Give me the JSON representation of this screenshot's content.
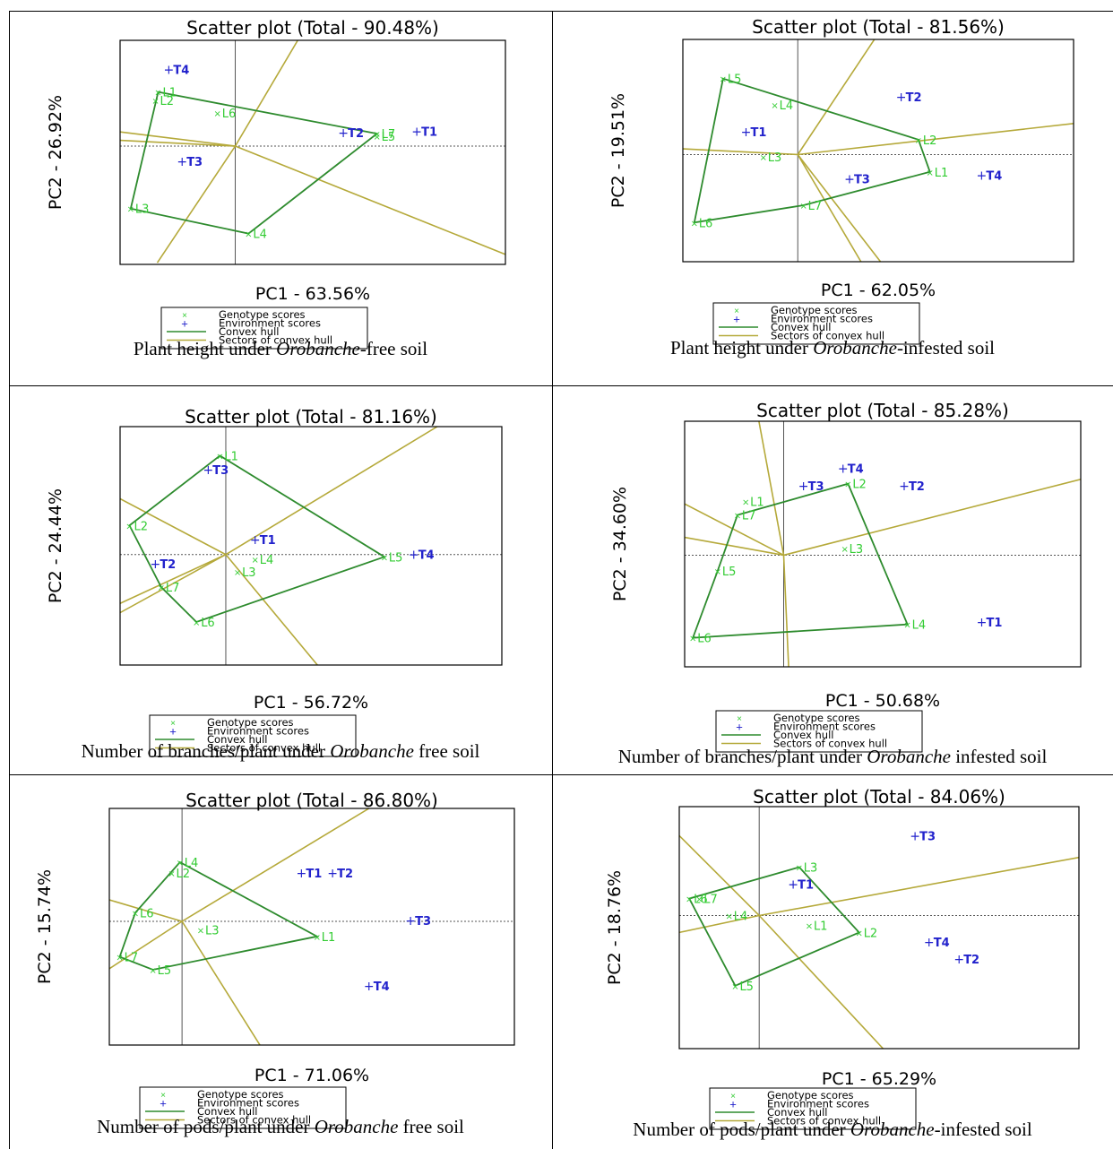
{
  "colors": {
    "genotype": "#33cc33",
    "environment": "#2222cc",
    "hull": "#2e8b2e",
    "sector": "#b5a93a",
    "frame": "#000000",
    "origin_lines": "#555555"
  },
  "legend": {
    "items": [
      "Genotype scores",
      "Environment scores",
      "Convex hull",
      "Sectors of convex hull"
    ]
  },
  "chart_data": [
    {
      "type": "scatter",
      "title": "Scatter plot (Total - 90.48%)",
      "xlabel": "PC1 - 63.56%",
      "ylabel": "PC2 - 26.92%",
      "caption": {
        "pre": "Plant height under ",
        "italic": "Orobanche",
        "post": "-free soil"
      },
      "xlim": [
        -1.3,
        3.05
      ],
      "ylim": [
        -1.42,
        1.27
      ],
      "genotypes": [
        {
          "name": "L1",
          "x": -0.87,
          "y": 0.65
        },
        {
          "name": "L2",
          "x": -0.9,
          "y": 0.55
        },
        {
          "name": "L3",
          "x": -1.18,
          "y": -0.75
        },
        {
          "name": "L4",
          "x": 0.15,
          "y": -1.05
        },
        {
          "name": "L5",
          "x": 1.6,
          "y": 0.12
        },
        {
          "name": "L6",
          "x": -0.2,
          "y": 0.4
        },
        {
          "name": "L7",
          "x": 1.6,
          "y": 0.15
        }
      ],
      "environments": [
        {
          "name": "T1",
          "x": 2.05,
          "y": 0.18
        },
        {
          "name": "T2",
          "x": 1.22,
          "y": 0.16
        },
        {
          "name": "T3",
          "x": -0.6,
          "y": -0.18
        },
        {
          "name": "T4",
          "x": -0.75,
          "y": 0.92
        }
      ],
      "hull": [
        "L1",
        "L7",
        "L4",
        "L3"
      ],
      "sectors": [
        [
          -1.3,
          0.17
        ],
        [
          -1.3,
          0.07
        ],
        [
          0.75,
          1.35
        ],
        [
          -0.88,
          -1.4
        ],
        [
          3.05,
          -1.3
        ]
      ]
    },
    {
      "type": "scatter",
      "title": "Scatter plot (Total - 81.56%)",
      "xlabel": "PC1 - 62.05%",
      "ylabel": "PC2 - 19.51%",
      "caption": {
        "pre": "Plant height under ",
        "italic": "Orobanche",
        "post": "-infested soil"
      },
      "xlim": [
        -1.0,
        2.4
      ],
      "ylim": [
        -0.93,
        1.0
      ],
      "genotypes": [
        {
          "name": "L1",
          "x": 1.15,
          "y": -0.15
        },
        {
          "name": "L2",
          "x": 1.05,
          "y": 0.13
        },
        {
          "name": "L3",
          "x": -0.3,
          "y": -0.02
        },
        {
          "name": "L4",
          "x": -0.2,
          "y": 0.43
        },
        {
          "name": "L5",
          "x": -0.65,
          "y": 0.66
        },
        {
          "name": "L6",
          "x": -0.9,
          "y": -0.59
        },
        {
          "name": "L7",
          "x": 0.05,
          "y": -0.44
        }
      ],
      "environments": [
        {
          "name": "T1",
          "x": -0.45,
          "y": 0.2
        },
        {
          "name": "T2",
          "x": 0.9,
          "y": 0.5
        },
        {
          "name": "T3",
          "x": 0.45,
          "y": -0.21
        },
        {
          "name": "T4",
          "x": 1.6,
          "y": -0.18
        }
      ],
      "hull": [
        "L5",
        "L2",
        "L1",
        "L7",
        "L6"
      ],
      "sectors": [
        [
          0.7,
          1.05
        ],
        [
          2.4,
          0.27
        ],
        [
          -1.0,
          0.05
        ],
        [
          0.55,
          -0.93
        ],
        [
          0.72,
          -0.93
        ]
      ]
    },
    {
      "type": "scatter",
      "title": "Scatter plot (Total - 81.16%)",
      "xlabel": "PC1 - 56.72%",
      "ylabel": "PC2 - 24.44%",
      "caption": {
        "pre": "Number of branches/plant under ",
        "italic": "Orobanche",
        "post": " free soil"
      },
      "xlim": [
        -0.9,
        2.35
      ],
      "ylim": [
        -0.95,
        1.1
      ],
      "genotypes": [
        {
          "name": "L1",
          "x": -0.05,
          "y": 0.85
        },
        {
          "name": "L2",
          "x": -0.82,
          "y": 0.25
        },
        {
          "name": "L3",
          "x": 0.1,
          "y": -0.15
        },
        {
          "name": "L4",
          "x": 0.25,
          "y": -0.04
        },
        {
          "name": "L5",
          "x": 1.35,
          "y": -0.02
        },
        {
          "name": "L6",
          "x": -0.25,
          "y": -0.58
        },
        {
          "name": "L7",
          "x": -0.55,
          "y": -0.28
        }
      ],
      "environments": [
        {
          "name": "T1",
          "x": 0.25,
          "y": 0.13
        },
        {
          "name": "T2",
          "x": -0.6,
          "y": -0.08
        },
        {
          "name": "T3",
          "x": -0.15,
          "y": 0.73
        },
        {
          "name": "T4",
          "x": 1.6,
          "y": 0.0
        }
      ],
      "hull": [
        "L1",
        "L5",
        "L6",
        "L7",
        "L2"
      ],
      "sectors": [
        [
          -0.9,
          0.48
        ],
        [
          -0.9,
          -0.42
        ],
        [
          -0.9,
          -0.5
        ],
        [
          0.78,
          -0.95
        ],
        [
          1.8,
          1.1
        ]
      ]
    },
    {
      "type": "scatter",
      "title": "Scatter plot (Total - 85.28%)",
      "xlabel": "PC1 - 50.68%",
      "ylabel": "PC2 - 34.60%",
      "caption": {
        "pre": "Number of branches/plant under ",
        "italic": "Orobanche",
        "post": " infested soil"
      },
      "xlim": [
        -0.6,
        1.8
      ],
      "ylim": [
        -0.5,
        0.6
      ],
      "genotypes": [
        {
          "name": "L1",
          "x": -0.23,
          "y": 0.24
        },
        {
          "name": "L2",
          "x": 0.39,
          "y": 0.32
        },
        {
          "name": "L3",
          "x": 0.37,
          "y": 0.03
        },
        {
          "name": "L4",
          "x": 0.75,
          "y": -0.31
        },
        {
          "name": "L5",
          "x": -0.4,
          "y": -0.07
        },
        {
          "name": "L6",
          "x": -0.55,
          "y": -0.37
        },
        {
          "name": "L7",
          "x": -0.28,
          "y": 0.18
        }
      ],
      "environments": [
        {
          "name": "T1",
          "x": 1.2,
          "y": -0.3
        },
        {
          "name": "T2",
          "x": 0.73,
          "y": 0.31
        },
        {
          "name": "T3",
          "x": 0.12,
          "y": 0.31
        },
        {
          "name": "T4",
          "x": 0.36,
          "y": 0.39
        }
      ],
      "hull": [
        "L7",
        "L2",
        "L4",
        "L6",
        "L5"
      ],
      "sectors": [
        [
          -0.15,
          0.6
        ],
        [
          -0.6,
          0.23
        ],
        [
          -0.6,
          0.08
        ],
        [
          0.03,
          -0.5
        ],
        [
          1.8,
          0.34
        ]
      ]
    },
    {
      "type": "scatter",
      "title": "Scatter plot (Total - 86.80%)",
      "xlabel": "PC1 - 71.06%",
      "ylabel": "PC2 - 15.74%",
      "caption": {
        "pre": "Number of pods/plant under ",
        "italic": "Orobanche",
        "post": " free soil"
      },
      "xlim": [
        -0.7,
        3.2
      ],
      "ylim": [
        -1.15,
        1.05
      ],
      "genotypes": [
        {
          "name": "L1",
          "x": 1.3,
          "y": -0.14
        },
        {
          "name": "L2",
          "x": -0.1,
          "y": 0.45
        },
        {
          "name": "L3",
          "x": 0.18,
          "y": -0.08
        },
        {
          "name": "L4",
          "x": -0.02,
          "y": 0.55
        },
        {
          "name": "L5",
          "x": -0.28,
          "y": -0.45
        },
        {
          "name": "L6",
          "x": -0.45,
          "y": 0.08
        },
        {
          "name": "L7",
          "x": -0.6,
          "y": -0.33
        }
      ],
      "environments": [
        {
          "name": "T1",
          "x": 1.15,
          "y": 0.45
        },
        {
          "name": "T2",
          "x": 1.45,
          "y": 0.45
        },
        {
          "name": "T3",
          "x": 2.2,
          "y": 0.01
        },
        {
          "name": "T4",
          "x": 1.8,
          "y": -0.6
        }
      ],
      "hull": [
        "L4",
        "L1",
        "L5",
        "L7",
        "L6"
      ],
      "sectors": [
        [
          -0.7,
          0.2
        ],
        [
          -0.7,
          -0.44
        ],
        [
          0.75,
          -1.15
        ],
        [
          1.8,
          1.05
        ]
      ]
    },
    {
      "type": "scatter",
      "title": "Scatter plot (Total - 84.06%)",
      "xlabel": "PC1 - 65.29%",
      "ylabel": "PC2 - 18.76%",
      "caption": {
        "pre": "Number of pods/plant under ",
        "italic": "Orobanche",
        "post": "-infested soil"
      },
      "xlim": [
        -0.4,
        1.6
      ],
      "ylim": [
        -0.55,
        0.45
      ],
      "genotypes": [
        {
          "name": "L1",
          "x": 0.25,
          "y": -0.04
        },
        {
          "name": "L2",
          "x": 0.5,
          "y": -0.07
        },
        {
          "name": "L3",
          "x": 0.2,
          "y": 0.2
        },
        {
          "name": "L4",
          "x": -0.15,
          "y": 0.0
        },
        {
          "name": "L5",
          "x": -0.12,
          "y": -0.29
        },
        {
          "name": "L6",
          "x": -0.35,
          "y": 0.07
        },
        {
          "name": "L7",
          "x": -0.3,
          "y": 0.07
        }
      ],
      "environments": [
        {
          "name": "T1",
          "x": 0.17,
          "y": 0.13
        },
        {
          "name": "T2",
          "x": 1.0,
          "y": -0.18
        },
        {
          "name": "T3",
          "x": 0.78,
          "y": 0.33
        },
        {
          "name": "T4",
          "x": 0.85,
          "y": -0.11
        }
      ],
      "hull": [
        "L3",
        "L2",
        "L5",
        "L6"
      ],
      "sectors": [
        [
          -0.4,
          0.33
        ],
        [
          -0.4,
          -0.07
        ],
        [
          0.62,
          -0.55
        ],
        [
          1.6,
          0.24
        ]
      ]
    }
  ]
}
